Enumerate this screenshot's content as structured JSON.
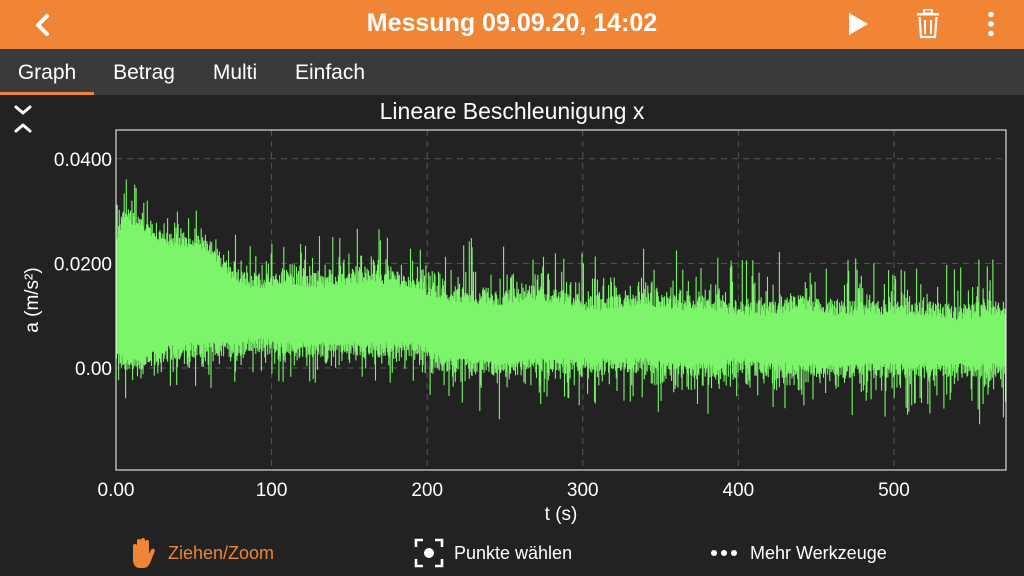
{
  "header": {
    "title": "Messung 09.09.20, 14:02",
    "back_icon": "chevron-left-icon",
    "play_icon": "play-icon",
    "delete_icon": "trash-icon",
    "menu_icon": "more-vertical-icon"
  },
  "tabs": [
    {
      "label": "Graph",
      "active": true
    },
    {
      "label": "Betrag",
      "active": false
    },
    {
      "label": "Multi",
      "active": false
    },
    {
      "label": "Einfach",
      "active": false
    }
  ],
  "tools": {
    "drag_zoom": {
      "label": "Ziehen/Zoom",
      "icon": "hand-icon",
      "active": true
    },
    "pick_points": {
      "label": "Punkte wählen",
      "icon": "select-point-icon",
      "active": false
    },
    "more_tools": {
      "label": "Mehr Werkzeuge",
      "icon": "more-horizontal-icon",
      "active": false
    }
  },
  "colors": {
    "accent": "#ef8535",
    "background": "#222222",
    "tabbar": "#3a3a3a",
    "series": "#7cf56b",
    "grid": "#555555"
  },
  "chart_data": {
    "type": "line",
    "title": "Lineare Beschleunigung x",
    "xlabel": "t (s)",
    "ylabel": "a (m/s²)",
    "xlim": [
      0,
      572
    ],
    "ylim": [
      -0.0195,
      0.0455
    ],
    "x_ticks": [
      0,
      100,
      200,
      300,
      400,
      500
    ],
    "x_tick_labels": [
      "0.00",
      "100",
      "200",
      "300",
      "400",
      "500"
    ],
    "y_ticks": [
      0,
      0.02,
      0.04
    ],
    "y_tick_labels": [
      "0.00",
      "0.0200",
      "0.0400"
    ],
    "grid": true,
    "series": [
      {
        "color": "#7cf56b",
        "x": [
          0,
          5,
          10,
          20,
          30,
          45,
          60,
          75,
          90,
          110,
          130,
          150,
          170,
          190,
          200,
          210,
          230,
          250,
          270,
          290,
          300,
          320,
          340,
          360,
          380,
          400,
          420,
          440,
          460,
          480,
          500,
          520,
          540,
          560,
          572
        ],
        "upper": [
          0.026,
          0.031,
          0.03,
          0.029,
          0.026,
          0.026,
          0.025,
          0.019,
          0.018,
          0.019,
          0.018,
          0.019,
          0.019,
          0.018,
          0.016,
          0.016,
          0.015,
          0.015,
          0.016,
          0.015,
          0.014,
          0.014,
          0.015,
          0.014,
          0.014,
          0.013,
          0.013,
          0.014,
          0.013,
          0.013,
          0.013,
          0.013,
          0.012,
          0.013,
          0.013
        ],
        "lower": [
          0.001,
          -0.001,
          -0.001,
          0.0,
          0.001,
          0.002,
          0.002,
          0.002,
          0.003,
          0.002,
          0.002,
          0.002,
          0.002,
          0.002,
          0.001,
          -0.001,
          -0.001,
          -0.002,
          -0.001,
          -0.001,
          -0.001,
          -0.001,
          -0.001,
          -0.002,
          -0.002,
          -0.001,
          -0.002,
          -0.002,
          -0.002,
          -0.002,
          -0.002,
          -0.002,
          -0.002,
          -0.002,
          -0.002
        ],
        "spike_max": [
          0.041,
          0.041,
          0.04,
          0.036,
          0.033,
          0.036,
          0.03,
          0.026,
          0.026,
          0.025,
          0.026,
          0.027,
          0.027,
          0.025,
          0.024,
          0.024,
          0.025,
          0.024,
          0.023,
          0.023,
          0.023,
          0.024,
          0.024,
          0.023,
          0.022,
          0.023,
          0.022,
          0.023,
          0.022,
          0.022,
          0.021,
          0.022,
          0.021,
          0.022,
          0.022
        ],
        "spike_min": [
          -0.008,
          -0.012,
          -0.005,
          -0.006,
          -0.005,
          -0.004,
          -0.004,
          -0.003,
          -0.002,
          -0.003,
          -0.003,
          -0.002,
          -0.003,
          -0.003,
          -0.007,
          -0.007,
          -0.008,
          -0.011,
          -0.008,
          -0.008,
          -0.007,
          -0.008,
          -0.008,
          -0.009,
          -0.009,
          -0.008,
          -0.009,
          -0.009,
          -0.009,
          -0.01,
          -0.009,
          -0.009,
          -0.01,
          -0.011,
          -0.01
        ]
      }
    ]
  }
}
